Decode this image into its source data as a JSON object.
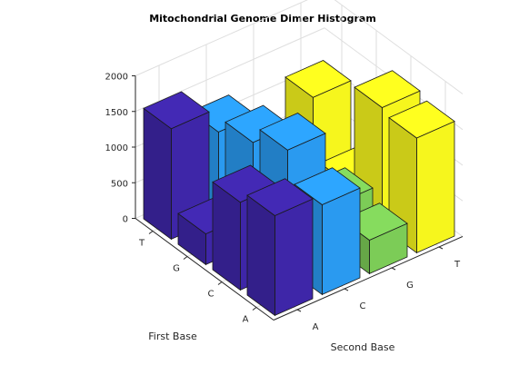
{
  "chart_data": {
    "type": "bar",
    "subtype": "3d-bar",
    "title": "Mitochondrial Genome Dimer Histogram",
    "xlabel": "Second Base",
    "ylabel": "First Base",
    "zlabel": "",
    "first_base_categories": [
      "A",
      "C",
      "G",
      "T"
    ],
    "second_base_categories": [
      "A",
      "C",
      "G",
      "T"
    ],
    "zticks": [
      0,
      500,
      1000,
      1500,
      2000
    ],
    "zlim": [
      0,
      2000
    ],
    "grid": true,
    "colors": {
      "A": "#3e26a8",
      "C": "#2a9af0",
      "G": "#7ccc57",
      "T": "#f6f61d"
    },
    "series": [
      {
        "name": "",
        "second_base": "A",
        "values": [
          1400,
          1230,
          430,
          1550
        ]
      },
      {
        "name": "",
        "second_base": "C",
        "values": [
          1260,
          1670,
          1420,
          1210
        ]
      },
      {
        "name": "",
        "second_base": "G",
        "values": [
          470,
          610,
          170,
          520
        ]
      },
      {
        "name": "",
        "second_base": "T",
        "values": [
          1610,
          1680,
          260,
          1110
        ]
      }
    ]
  }
}
